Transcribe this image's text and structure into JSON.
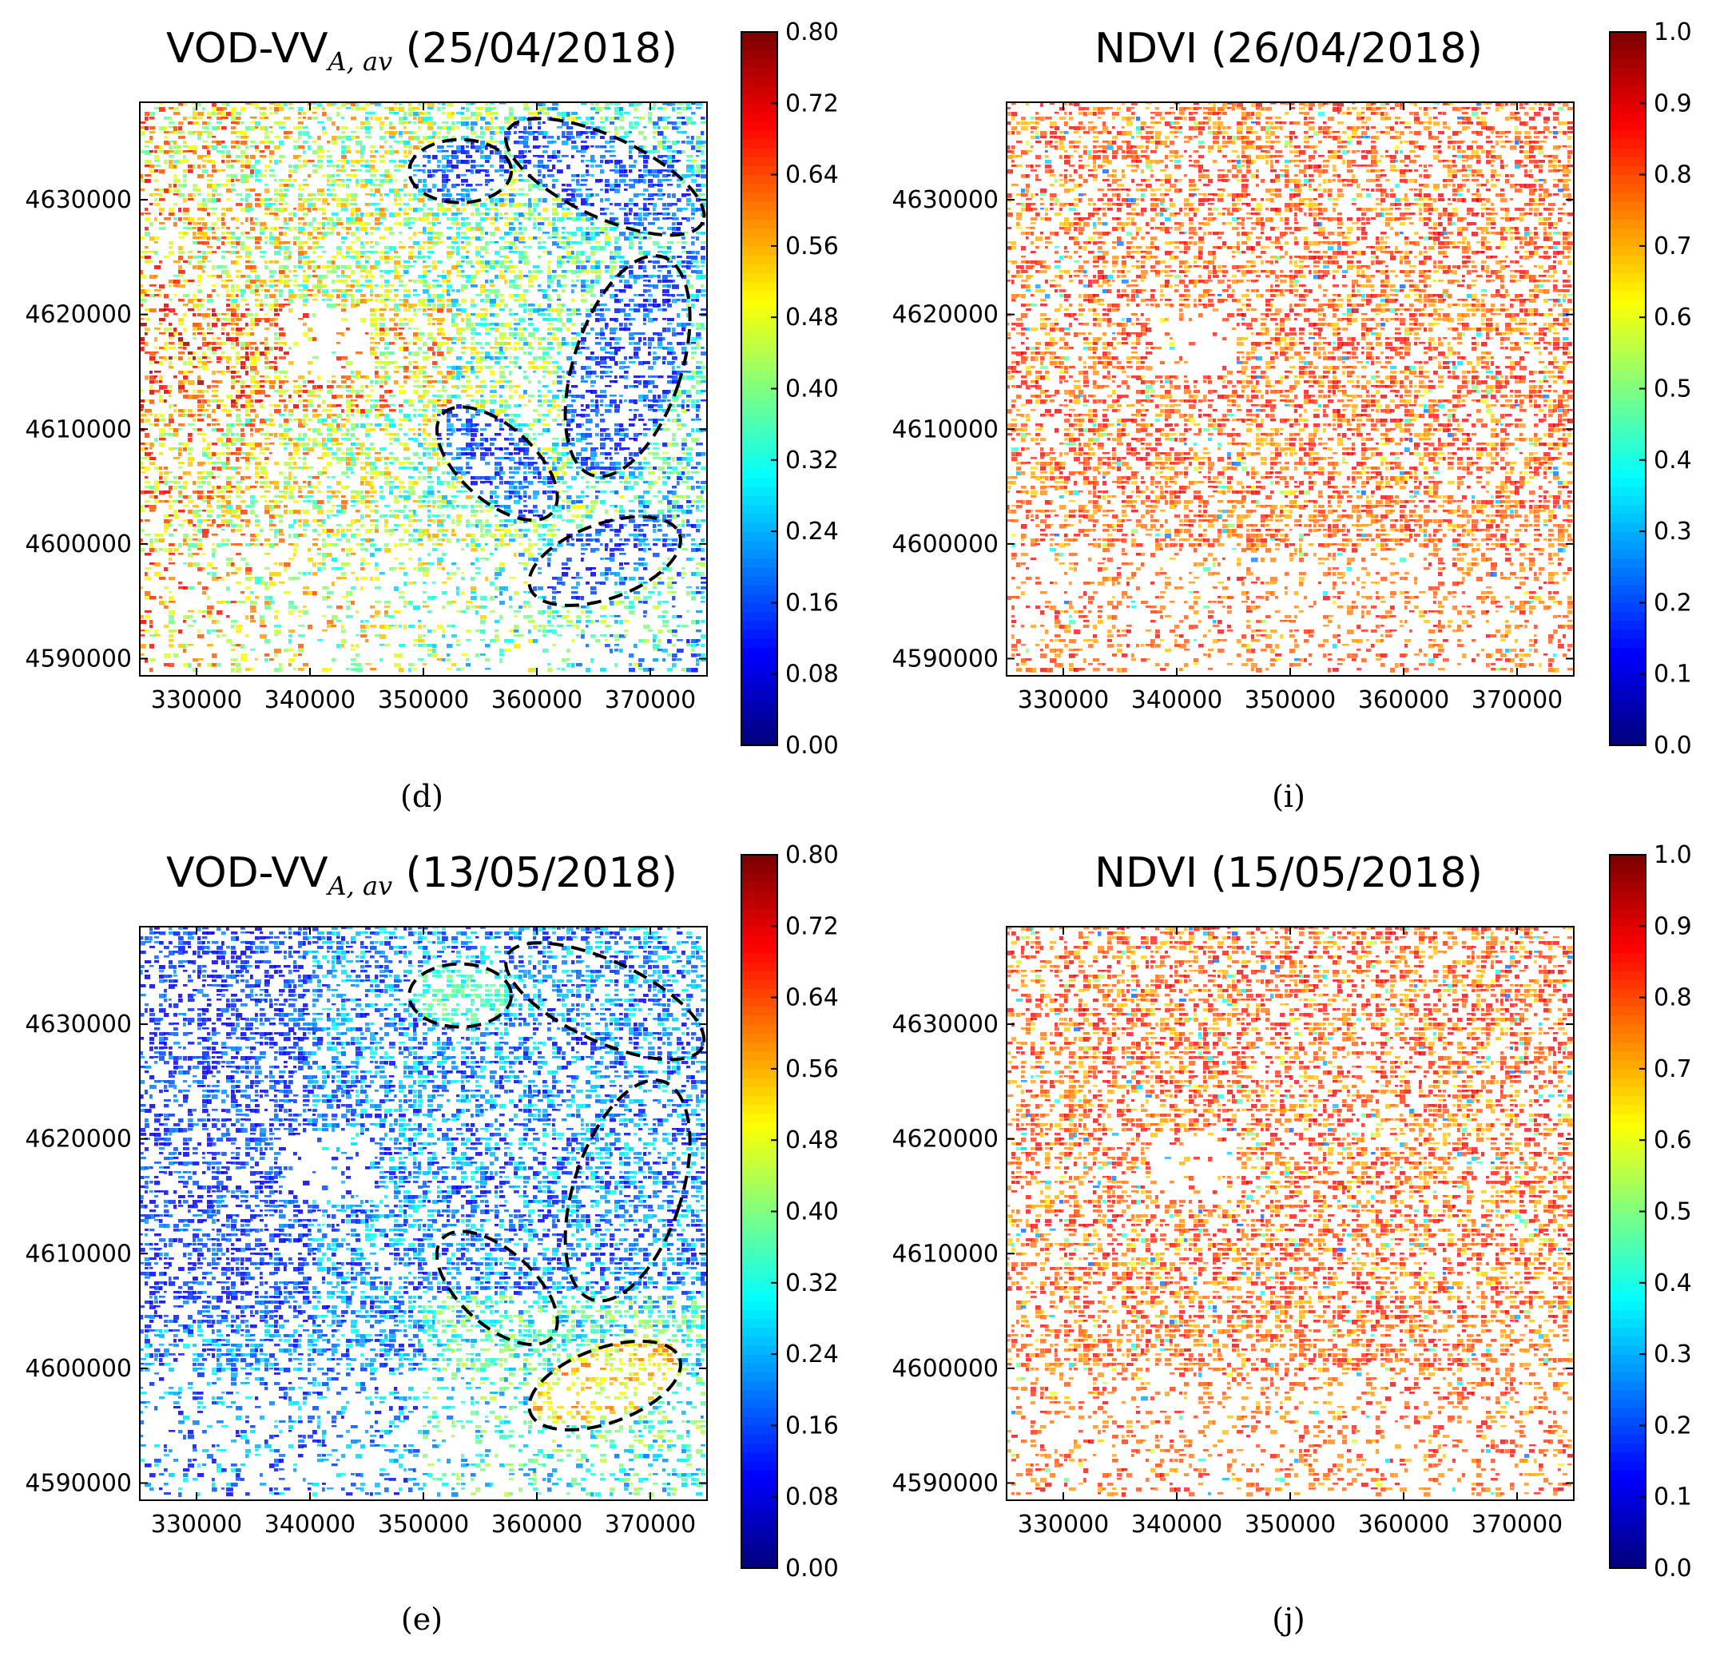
{
  "chart_data": [
    {
      "panel": "d",
      "type": "heatmap",
      "title_main": "VOD-VV",
      "title_sub": "A, av",
      "title_date": "(25/04/2018)",
      "caption": "(d)",
      "variable": "VOD",
      "xlim": [
        325000,
        375000
      ],
      "ylim": [
        4588500,
        4638500
      ],
      "xticks": [
        "330000",
        "340000",
        "350000",
        "360000",
        "370000"
      ],
      "yticks": [
        "4590000",
        "4600000",
        "4610000",
        "4620000",
        "4630000"
      ],
      "colorbar": {
        "min": 0.0,
        "max": 0.8,
        "ticks": [
          "0.00",
          "0.08",
          "0.16",
          "0.24",
          "0.32",
          "0.40",
          "0.48",
          "0.56",
          "0.64",
          "0.72",
          "0.80"
        ]
      },
      "annotations": "five dashed ellipses marking regions of interest",
      "pattern": "mixed; high VOD (orange/red) in west and centre, low (blue/cyan) in east ellipses"
    },
    {
      "panel": "i",
      "type": "heatmap",
      "title_main": "NDVI",
      "title_sub": "",
      "title_date": "(26/04/2018)",
      "caption": "(i)",
      "variable": "NDVI",
      "xlim": [
        325000,
        375000
      ],
      "ylim": [
        4588500,
        4638500
      ],
      "xticks": [
        "330000",
        "340000",
        "350000",
        "360000",
        "370000"
      ],
      "yticks": [
        "4590000",
        "4600000",
        "4610000",
        "4620000",
        "4630000"
      ],
      "colorbar": {
        "min": 0.0,
        "max": 1.0,
        "ticks": [
          "0.0",
          "0.1",
          "0.2",
          "0.3",
          "0.4",
          "0.5",
          "0.6",
          "0.7",
          "0.8",
          "0.9",
          "1.0"
        ]
      },
      "pattern": "mostly orange/red (NDVI 0.8-0.9) with sparse lower values"
    },
    {
      "panel": "e",
      "type": "heatmap",
      "title_main": "VOD-VV",
      "title_sub": "A, av",
      "title_date": "(13/05/2018)",
      "caption": "(e)",
      "variable": "VOD",
      "xlim": [
        325000,
        375000
      ],
      "ylim": [
        4588500,
        4638500
      ],
      "xticks": [
        "330000",
        "340000",
        "350000",
        "360000",
        "370000"
      ],
      "yticks": [
        "4590000",
        "4600000",
        "4610000",
        "4620000",
        "4630000"
      ],
      "colorbar": {
        "min": 0.0,
        "max": 0.8,
        "ticks": [
          "0.00",
          "0.08",
          "0.16",
          "0.24",
          "0.32",
          "0.40",
          "0.48",
          "0.56",
          "0.64",
          "0.72",
          "0.80"
        ]
      },
      "annotations": "five dashed ellipses marking regions of interest",
      "pattern": "predominantly low VOD (blue) in centre; higher values (orange/red) in south-east ellipse"
    },
    {
      "panel": "j",
      "type": "heatmap",
      "title_main": "NDVI",
      "title_sub": "",
      "title_date": "(15/05/2018)",
      "caption": "(j)",
      "variable": "NDVI",
      "xlim": [
        325000,
        375000
      ],
      "ylim": [
        4588500,
        4638500
      ],
      "xticks": [
        "330000",
        "340000",
        "350000",
        "360000",
        "370000"
      ],
      "yticks": [
        "4590000",
        "4600000",
        "4610000",
        "4620000",
        "4630000"
      ],
      "colorbar": {
        "min": 0.0,
        "max": 1.0,
        "ticks": [
          "0.0",
          "0.1",
          "0.2",
          "0.3",
          "0.4",
          "0.5",
          "0.6",
          "0.7",
          "0.8",
          "0.9",
          "1.0"
        ]
      },
      "pattern": "mostly orange/red (NDVI 0.8-0.9) with sparse lower values"
    }
  ]
}
